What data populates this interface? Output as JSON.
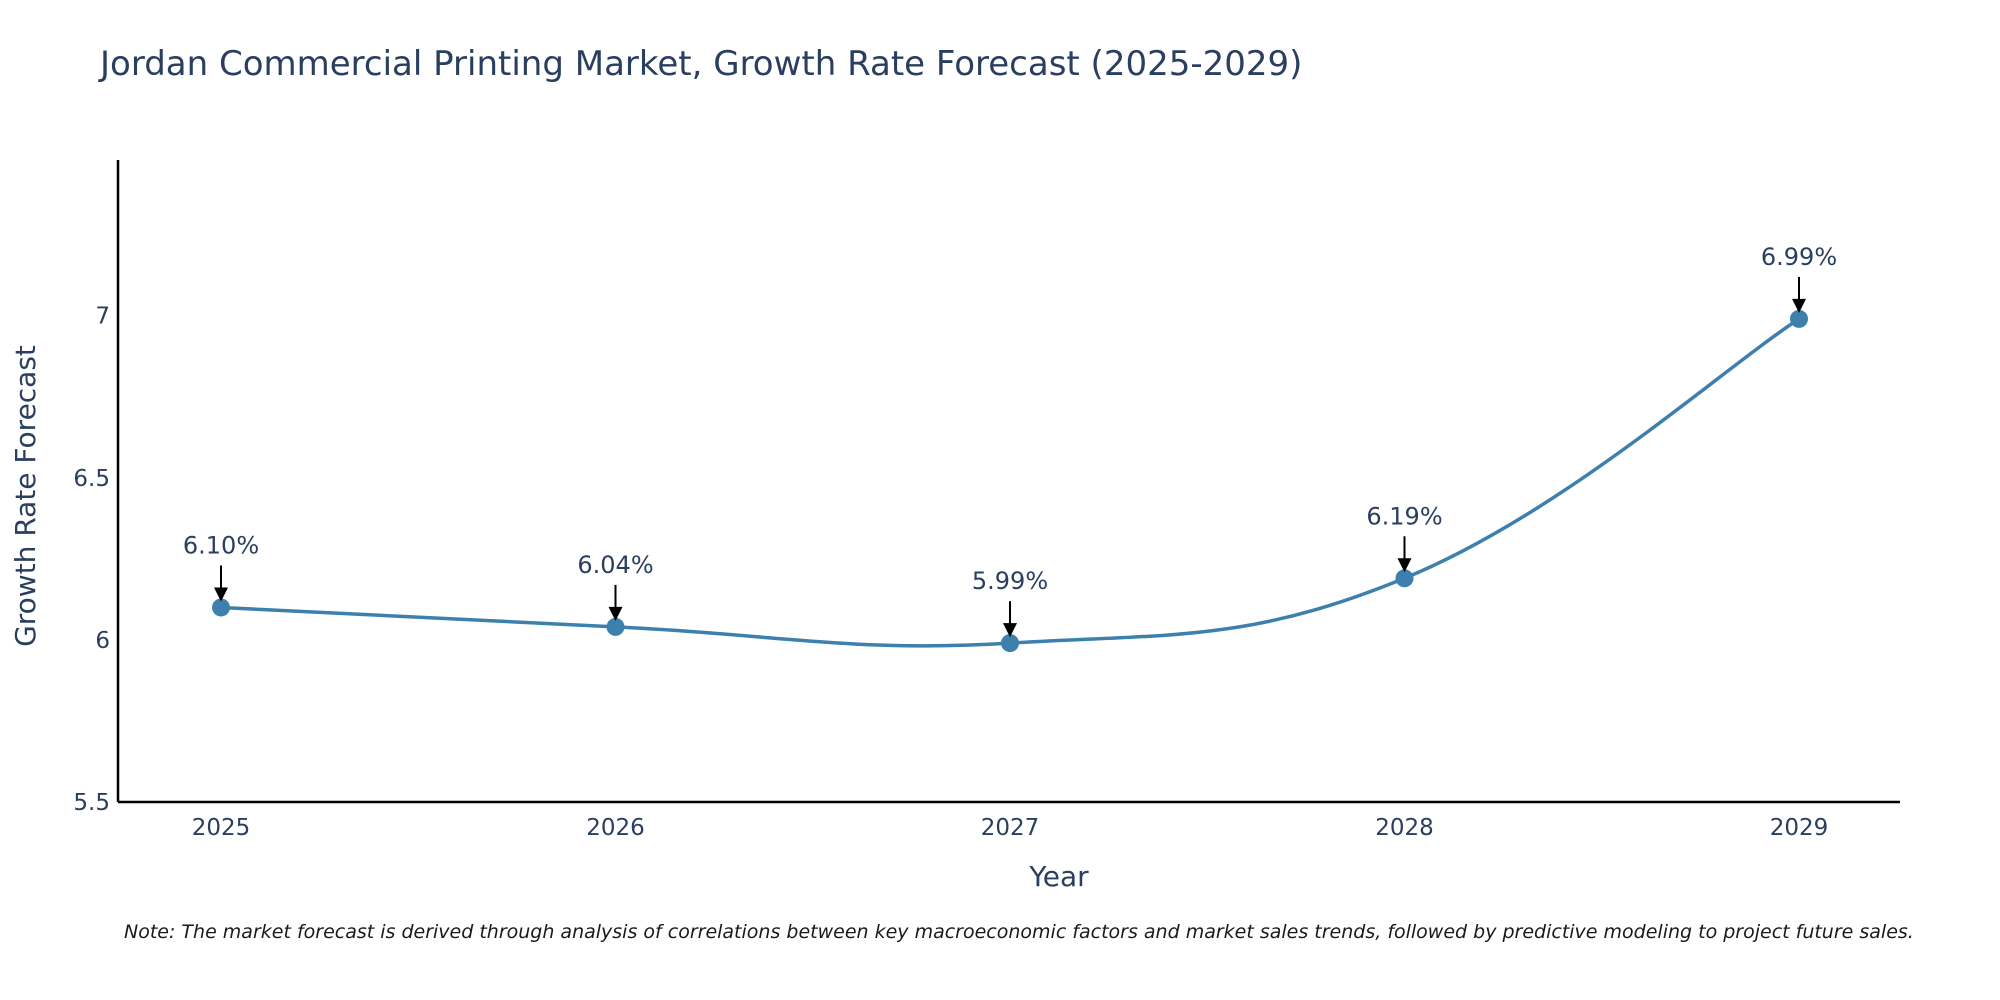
{
  "chart_data": {
    "type": "line",
    "title": "Jordan Commercial Printing Market, Growth Rate Forecast (2025-2029)",
    "xlabel": "Year",
    "ylabel": "Growth Rate Forecast",
    "categories": [
      "2025",
      "2026",
      "2027",
      "2028",
      "2029"
    ],
    "series": [
      {
        "name": "Growth Rate Forecast",
        "values": [
          6.1,
          6.04,
          5.99,
          6.19,
          6.99
        ],
        "labels": [
          "6.10%",
          "6.04%",
          "5.99%",
          "6.19%",
          "6.99%"
        ],
        "color": "#3d7fad"
      }
    ],
    "ylim": [
      5.5,
      7.48
    ],
    "yticks": [
      5.5,
      6,
      6.5,
      7
    ],
    "ytick_labels": [
      "5.5",
      "6",
      "6.5",
      "7"
    ],
    "grid": false,
    "legend": "none"
  },
  "note": "Note: The market forecast is derived through analysis of correlations between key macroeconomic factors and market sales trends, followed by predictive modeling to project future sales."
}
